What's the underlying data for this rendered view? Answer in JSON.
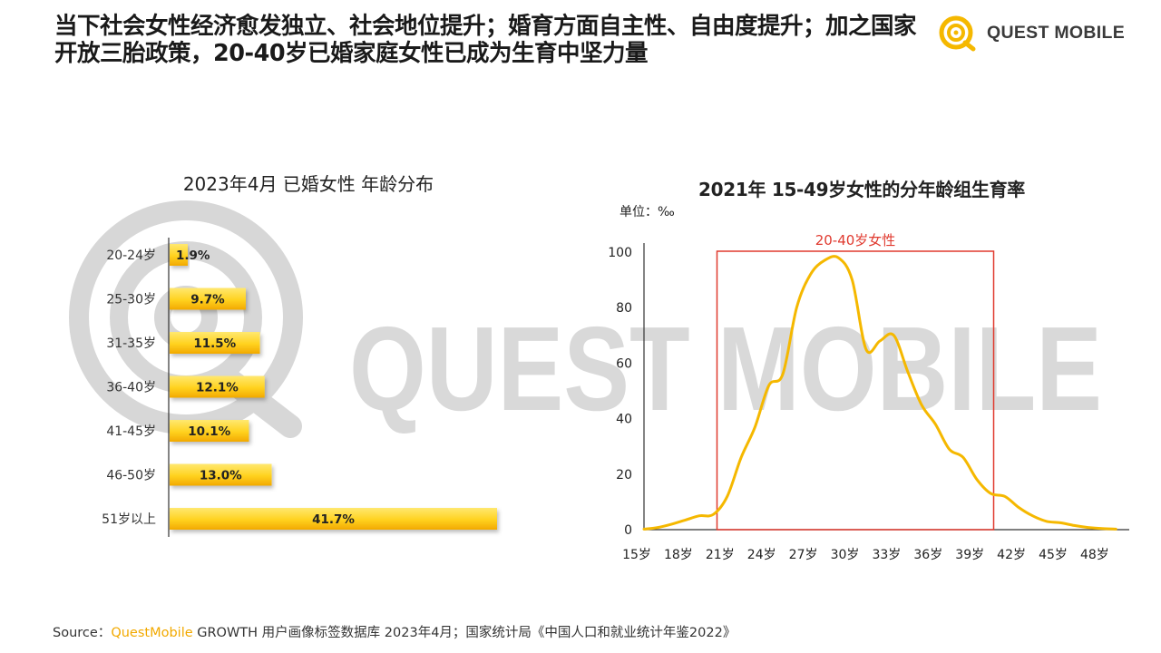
{
  "headline": "当下社会女性经济愈发独立、社会地位提升；婚育方面自主性、自由度提升；加之国家开放三胎政策，20-40岁已婚家庭女性已成为生育中坚力量",
  "brand": {
    "name": "QUEST MOBILE",
    "watermark_text": "QUEST MOBILE"
  },
  "colors": {
    "accent": "#F5B800",
    "accent_light": "#FFE15A",
    "box": "#E03A2F"
  },
  "chart_data": [
    {
      "type": "bar",
      "orientation": "horizontal",
      "title": "2023年4月 已婚女性 年龄分布",
      "categories": [
        "20-24岁",
        "25-30岁",
        "31-35岁",
        "36-40岁",
        "41-45岁",
        "46-50岁",
        "51岁以上"
      ],
      "values": [
        1.9,
        9.7,
        11.5,
        12.1,
        10.1,
        13.0,
        41.7
      ],
      "value_labels": [
        "1.9%",
        "9.7%",
        "11.5%",
        "12.1%",
        "10.1%",
        "13.0%",
        "41.7%"
      ]
    },
    {
      "type": "line",
      "title": "2021年 15-49岁女性的分年龄组生育率",
      "unit_label": "单位：‰",
      "x": [
        15,
        16,
        17,
        18,
        19,
        20,
        21,
        22,
        23,
        24,
        25,
        26,
        27,
        28,
        29,
        30,
        31,
        32,
        33,
        34,
        35,
        36,
        37,
        38,
        39,
        40,
        41,
        42,
        43,
        44,
        45,
        46,
        47,
        48,
        49
      ],
      "y": [
        0.2,
        0.8,
        2,
        3.5,
        5,
        5.5,
        12,
        26,
        37,
        52,
        56,
        80,
        92,
        97,
        98,
        90,
        65,
        68,
        70,
        57,
        45,
        38,
        29,
        26,
        18,
        13,
        12,
        8,
        5,
        3,
        2.5,
        1.5,
        0.8,
        0.4,
        0.2
      ],
      "ylim": [
        0,
        100
      ],
      "yticks": [
        0,
        20,
        40,
        60,
        80,
        100
      ],
      "xtick_labels": [
        "15岁",
        "18岁",
        "21岁",
        "24岁",
        "27岁",
        "30岁",
        "33岁",
        "36岁",
        "39岁",
        "42岁",
        "45岁",
        "48岁"
      ],
      "xtick_values": [
        15,
        18,
        21,
        24,
        27,
        30,
        33,
        36,
        39,
        42,
        45,
        48
      ],
      "highlight": {
        "label": "20-40岁女性",
        "x_from": 20,
        "x_to": 40
      }
    }
  ],
  "source": {
    "prefix": "Source：",
    "brand": "QuestMobile",
    "rest": " GROWTH 用户画像标签数据库 2023年4月；国家统计局《中国人口和就业统计年鉴2022》"
  }
}
